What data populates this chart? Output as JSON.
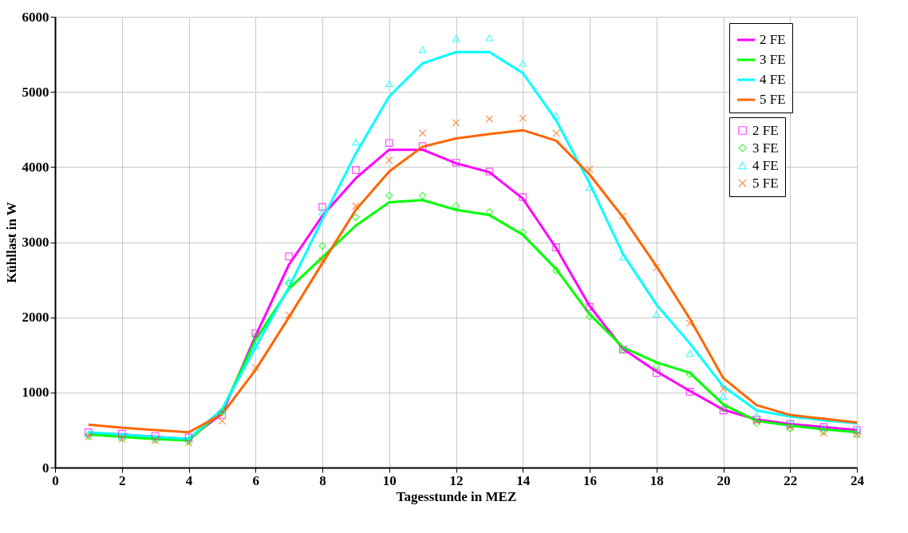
{
  "chart_data": {
    "type": "line",
    "xlabel": "Tagesstunde in MEZ",
    "ylabel": "Kühllast in W",
    "x": [
      1,
      2,
      3,
      4,
      5,
      6,
      7,
      8,
      9,
      10,
      11,
      12,
      13,
      14,
      15,
      16,
      17,
      18,
      19,
      20,
      21,
      22,
      23,
      24
    ],
    "xlim": [
      0,
      24
    ],
    "xticks": [
      0,
      2,
      4,
      6,
      8,
      10,
      12,
      14,
      16,
      18,
      20,
      22,
      24
    ],
    "ylim": [
      0,
      6000
    ],
    "yticks": [
      0,
      1000,
      2000,
      3000,
      4000,
      5000,
      6000
    ],
    "grid": true,
    "legend": "top right",
    "line_style": "solid",
    "series": [
      {
        "name": "2 FE",
        "color": "#ff00ff",
        "values": [
          460,
          440,
          410,
          380,
          720,
          1750,
          2700,
          3350,
          3850,
          4230,
          4230,
          4050,
          3930,
          3580,
          2920,
          2150,
          1580,
          1280,
          1020,
          770,
          640,
          580,
          540,
          500
        ]
      },
      {
        "name": "3 FE",
        "color": "#00ff00",
        "values": [
          440,
          410,
          380,
          360,
          760,
          1700,
          2380,
          2800,
          3220,
          3530,
          3560,
          3430,
          3360,
          3100,
          2640,
          2040,
          1600,
          1400,
          1260,
          840,
          620,
          560,
          510,
          470
        ]
      },
      {
        "name": "4 FE",
        "color": "#00ffff",
        "values": [
          470,
          440,
          410,
          380,
          780,
          1600,
          2400,
          3300,
          4180,
          4940,
          5380,
          5530,
          5530,
          5250,
          4620,
          3780,
          2840,
          2170,
          1650,
          1080,
          760,
          680,
          630,
          590
        ]
      },
      {
        "name": "5 FE",
        "color": "#ff6600",
        "values": [
          570,
          530,
          500,
          470,
          710,
          1300,
          2000,
          2720,
          3430,
          3940,
          4270,
          4380,
          4440,
          4490,
          4350,
          3900,
          3330,
          2680,
          1980,
          1190,
          830,
          700,
          650,
          600
        ]
      },
      {
        "name": "2 FE",
        "type": "scatter",
        "marker": "square",
        "color": "#ff00ff",
        "values": [
          470,
          450,
          420,
          400,
          700,
          1790,
          2810,
          3470,
          3960,
          4320,
          4280,
          4060,
          3940,
          3600,
          2930,
          2140,
          1570,
          1260,
          1010,
          760,
          640,
          580,
          540,
          500
        ]
      },
      {
        "name": "3 FE",
        "type": "scatter",
        "marker": "diamond",
        "color": "#00ff00",
        "values": [
          420,
          390,
          370,
          350,
          740,
          1750,
          2450,
          2950,
          3330,
          3620,
          3620,
          3480,
          3400,
          3130,
          2620,
          2010,
          1570,
          1350,
          1240,
          780,
          590,
          520,
          480,
          440
        ]
      },
      {
        "name": "4 FE",
        "type": "scatter",
        "marker": "triangle",
        "color": "#00ffff",
        "values": [
          450,
          420,
          400,
          380,
          760,
          1620,
          2490,
          3400,
          4330,
          5110,
          5560,
          5710,
          5720,
          5380,
          4680,
          3730,
          2800,
          2040,
          1520,
          950,
          690,
          590,
          530,
          510
        ]
      },
      {
        "name": "5 FE",
        "type": "scatter",
        "marker": "cross",
        "color": "#ff6600",
        "values": [
          410,
          380,
          360,
          330,
          620,
          1330,
          2030,
          2760,
          3480,
          4090,
          4450,
          4590,
          4640,
          4650,
          4450,
          3970,
          3350,
          2660,
          1920,
          1050,
          620,
          540,
          460,
          440
        ]
      }
    ]
  }
}
